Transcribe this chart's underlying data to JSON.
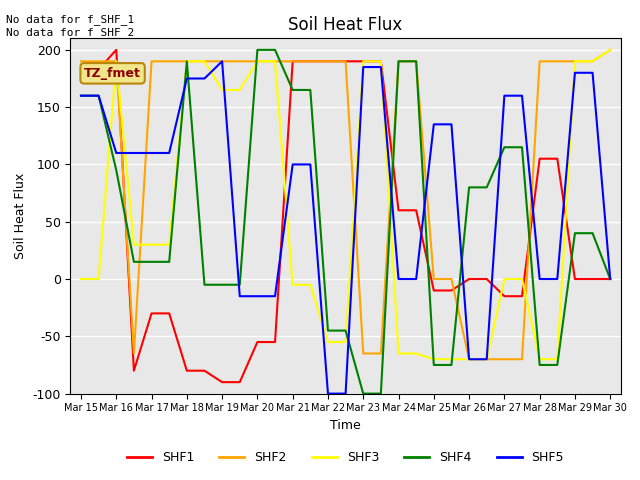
{
  "title": "Soil Heat Flux",
  "ylabel": "Soil Heat Flux",
  "xlabel": "Time",
  "ylim": [
    -100,
    210
  ],
  "background_color": "#e8e8e8",
  "annotation_text": "No data for f_SHF_1\nNo data for f_SHF_2",
  "legend_label": "TZ_fmet",
  "legend_box_color": "#f0e68c",
  "legend_box_edge": "#b8860b",
  "series": {
    "SHF1": {
      "color": "red",
      "x": [
        0,
        0.5,
        1,
        1.5,
        2,
        2.5,
        3,
        3.5,
        4,
        4.5,
        5,
        5.5,
        6,
        6.5,
        7,
        7.5,
        8,
        8.5,
        9,
        9.5,
        10,
        10.5,
        11,
        11.5,
        12,
        12.5,
        13,
        13.5,
        14,
        14.5,
        15
      ],
      "y": [
        183,
        183,
        200,
        -80,
        -30,
        -30,
        -80,
        -80,
        -90,
        -90,
        -55,
        -55,
        190,
        190,
        190,
        190,
        190,
        190,
        60,
        60,
        -10,
        -10,
        0,
        0,
        -15,
        -15,
        105,
        105,
        0,
        0,
        0
      ]
    },
    "SHF2": {
      "color": "orange",
      "x": [
        0,
        0.5,
        1,
        1.5,
        2,
        2.5,
        3,
        3.5,
        4,
        4.5,
        5,
        5.5,
        6,
        6.5,
        7,
        7.5,
        8,
        8.5,
        9,
        9.5,
        10,
        10.5,
        11,
        11.5,
        12,
        12.5,
        13,
        13.5,
        14,
        14.5,
        15
      ],
      "y": [
        190,
        190,
        190,
        -65,
        190,
        190,
        190,
        190,
        190,
        190,
        190,
        190,
        190,
        190,
        190,
        190,
        -65,
        -65,
        190,
        190,
        0,
        0,
        -70,
        -70,
        -70,
        -70,
        190,
        190,
        190,
        190,
        200
      ]
    },
    "SHF3": {
      "color": "yellow",
      "x": [
        0,
        0.5,
        1,
        1.5,
        2,
        2.5,
        3,
        3.5,
        4,
        4.5,
        5,
        5.5,
        6,
        6.5,
        7,
        7.5,
        8,
        8.5,
        9,
        9.5,
        10,
        10.5,
        11,
        11.5,
        12,
        12.5,
        13,
        13.5,
        14,
        14.5,
        15
      ],
      "y": [
        0,
        0,
        190,
        30,
        30,
        30,
        190,
        190,
        165,
        165,
        190,
        190,
        -5,
        -5,
        -55,
        -55,
        190,
        190,
        -65,
        -65,
        -70,
        -70,
        -70,
        -70,
        0,
        0,
        -70,
        -70,
        190,
        190,
        200
      ]
    },
    "SHF4": {
      "color": "green",
      "x": [
        0,
        0.5,
        1,
        1.5,
        2,
        2.5,
        3,
        3.5,
        4,
        4.5,
        5,
        5.5,
        6,
        6.5,
        7,
        7.5,
        8,
        8.5,
        9,
        9.5,
        10,
        10.5,
        11,
        11.5,
        12,
        12.5,
        13,
        13.5,
        14,
        14.5,
        15
      ],
      "y": [
        160,
        160,
        95,
        15,
        15,
        15,
        190,
        -5,
        -5,
        -5,
        200,
        200,
        165,
        165,
        -45,
        -45,
        -100,
        -100,
        190,
        190,
        -75,
        -75,
        80,
        80,
        115,
        115,
        -75,
        -75,
        40,
        40,
        0
      ]
    },
    "SHF5": {
      "color": "blue",
      "x": [
        0,
        0.5,
        1,
        1.5,
        2,
        2.5,
        3,
        3.5,
        4,
        4.5,
        5,
        5.5,
        6,
        6.5,
        7,
        7.5,
        8,
        8.5,
        9,
        9.5,
        10,
        10.5,
        11,
        11.5,
        12,
        12.5,
        13,
        13.5,
        14,
        14.5,
        15
      ],
      "y": [
        160,
        160,
        110,
        110,
        110,
        110,
        175,
        175,
        190,
        -15,
        -15,
        -15,
        100,
        100,
        -100,
        -100,
        185,
        185,
        0,
        0,
        135,
        135,
        -70,
        -70,
        160,
        160,
        0,
        0,
        180,
        180,
        0
      ]
    }
  },
  "xtick_labels": [
    "Mar 15",
    "Mar 16",
    "Mar 17",
    "Mar 18",
    "Mar 19",
    "Mar 20",
    "Mar 21",
    "Mar 22",
    "Mar 23",
    "Mar 24",
    "Mar 25",
    "Mar 26",
    "Mar 27",
    "Mar 28",
    "Mar 29",
    "Mar 30"
  ],
  "xtick_positions": [
    0,
    1,
    2,
    3,
    4,
    5,
    6,
    7,
    8,
    9,
    10,
    11,
    12,
    13,
    14,
    15
  ],
  "ytick_values": [
    -100,
    -50,
    0,
    50,
    100,
    150,
    200
  ],
  "grid_color": "white"
}
